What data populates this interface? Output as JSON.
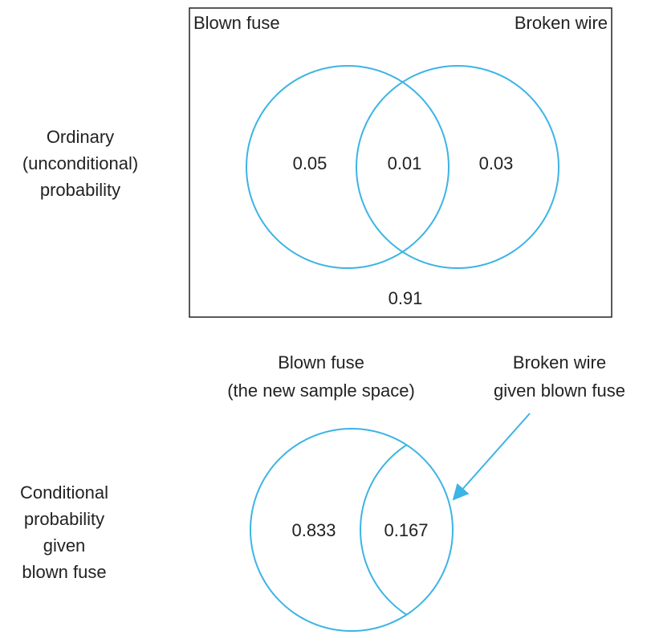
{
  "ordinary": {
    "label": [
      "Ordinary",
      "(unconditional)",
      "probability"
    ],
    "set_a": "Blown fuse",
    "set_b": "Broken wire",
    "only_a": 0.05,
    "both": 0.01,
    "only_b": 0.03,
    "neither": 0.91
  },
  "conditional": {
    "label": [
      "Conditional",
      "probability",
      "given",
      "blown fuse"
    ],
    "space_label": [
      "Blown fuse",
      "(the new sample space)"
    ],
    "arrow_label": [
      "Broken wire",
      "given blown fuse"
    ],
    "not_b": 0.833,
    "b": 0.167
  }
}
